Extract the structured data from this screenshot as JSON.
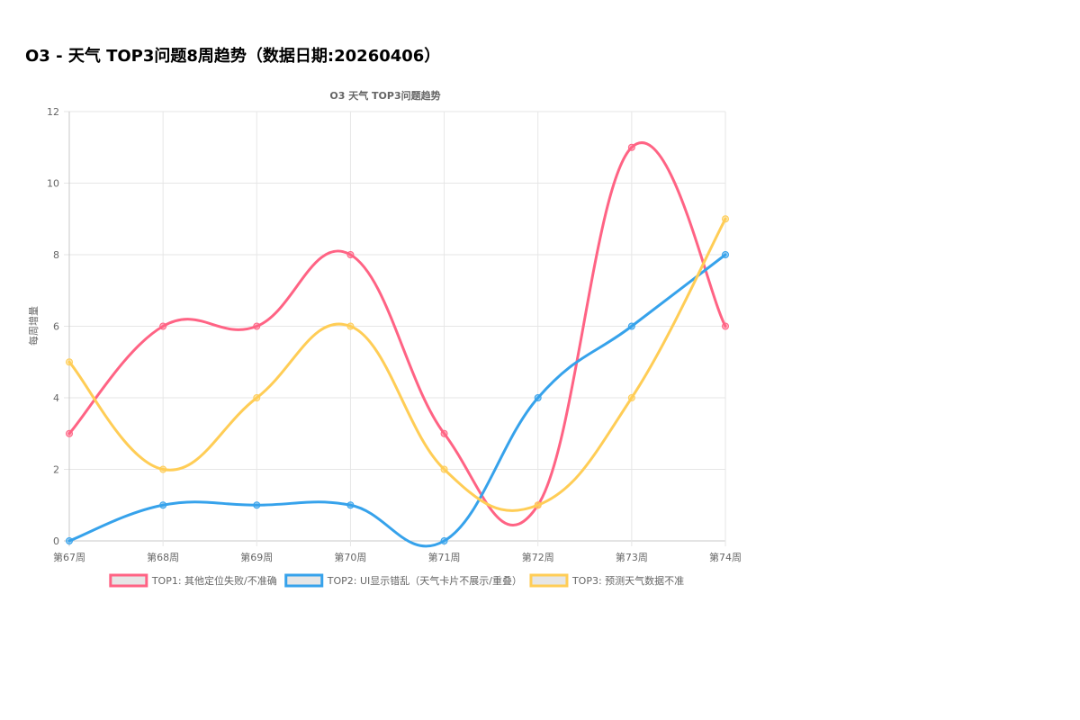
{
  "page": {
    "title": "O3 - 天气 TOP3问题8周趋势（数据日期:20260406）"
  },
  "chart_data": {
    "type": "line",
    "title": "O3 天气 TOP3问题趋势",
    "xlabel": "",
    "ylabel": "每周增量",
    "categories": [
      "第67周",
      "第68周",
      "第69周",
      "第70周",
      "第71周",
      "第72周",
      "第73周",
      "第74周"
    ],
    "ylim": [
      0,
      12
    ],
    "yticks": [
      0,
      2,
      4,
      6,
      8,
      10,
      12
    ],
    "grid": true,
    "legend_position": "bottom",
    "series": [
      {
        "name": "TOP1: 其他定位失败/不准确",
        "values": [
          3,
          6,
          6,
          8,
          3,
          1,
          11,
          6
        ],
        "color": "#ff6384"
      },
      {
        "name": "TOP2: UI显示错乱（天气卡片不展示/重叠）",
        "values": [
          0,
          1,
          1,
          1,
          0,
          4,
          6,
          8
        ],
        "color": "#36a2eb"
      },
      {
        "name": "TOP3: 预测天气数据不准",
        "values": [
          5,
          2,
          4,
          6,
          2,
          1,
          4,
          9
        ],
        "color": "#ffcd56"
      }
    ]
  }
}
